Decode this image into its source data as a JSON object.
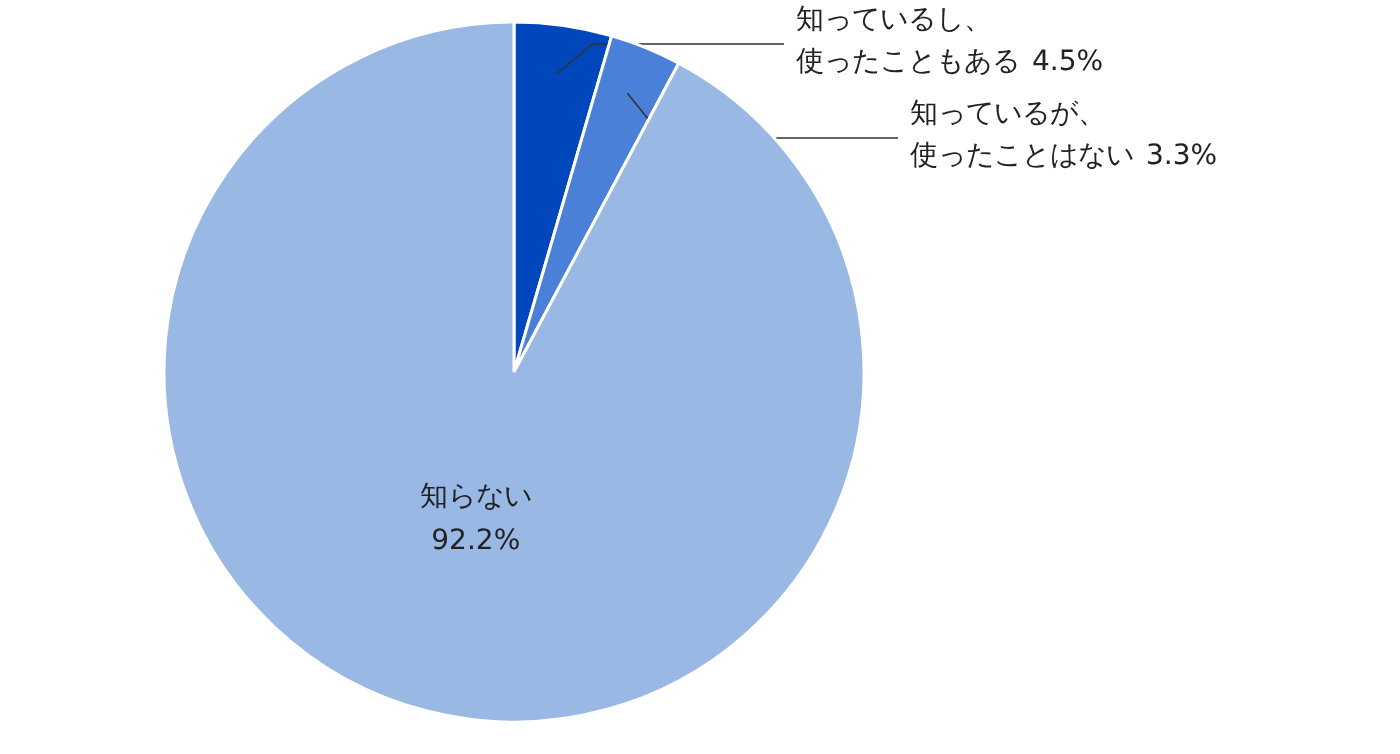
{
  "chart_data": {
    "type": "pie",
    "categories": [
      "知っているし、使ったこともある",
      "知っているが、使ったことはない",
      "知らない"
    ],
    "values": [
      4.5,
      3.3,
      92.2
    ],
    "value_labels": [
      "4.5%",
      "3.3%",
      "92.2%"
    ],
    "colors": [
      "#0047bb",
      "#4a80d8",
      "#9ab8e4"
    ]
  }
}
